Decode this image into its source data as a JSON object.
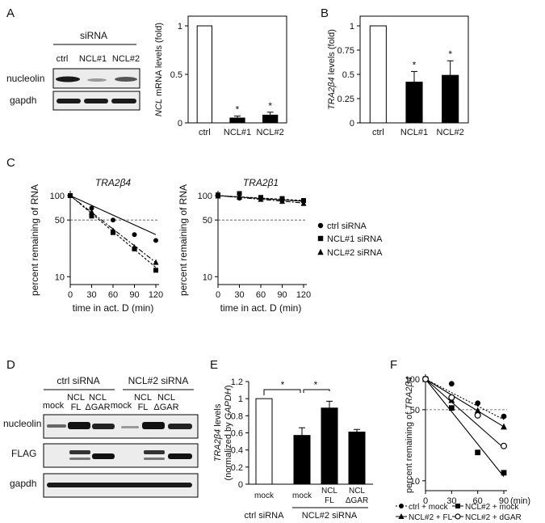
{
  "panels": {
    "A": "A",
    "B": "B",
    "C": "C",
    "D": "D",
    "E": "E",
    "F": "F"
  },
  "panelA": {
    "blot": {
      "header": "siRNA",
      "lanes": [
        "ctrl",
        "NCL#1",
        "NCL#2"
      ],
      "rows": [
        "nucleolin",
        "gapdh"
      ]
    }
  },
  "chart_data": [
    {
      "id": "A-chart",
      "type": "bar",
      "ylabel_italic": "NCL",
      "ylabel": " mRNA levels (fold)",
      "categories": [
        "ctrl",
        "NCL#1",
        "NCL#2"
      ],
      "values": [
        1.0,
        0.05,
        0.08
      ],
      "errors": [
        0,
        0.02,
        0.03
      ],
      "significance": [
        "",
        "*",
        "*"
      ],
      "fills": [
        "#ffffff",
        "#000000",
        "#000000"
      ],
      "ylim": [
        0,
        1.1
      ],
      "yticks": [
        "0",
        "0.5",
        "1"
      ]
    },
    {
      "id": "B-chart",
      "type": "bar",
      "ylabel_italic": "TRA2β4",
      "ylabel": " levels (fold)",
      "categories": [
        "ctrl",
        "NCL#1",
        "NCL#2"
      ],
      "values": [
        1.0,
        0.42,
        0.49
      ],
      "errors": [
        0,
        0.11,
        0.15
      ],
      "significance": [
        "",
        "*",
        "*"
      ],
      "fills": [
        "#ffffff",
        "#000000",
        "#000000"
      ],
      "ylim": [
        0,
        1.1
      ],
      "yticks": [
        "0",
        "0.25",
        "0.5",
        "0.75",
        "1"
      ]
    },
    {
      "id": "C-left",
      "type": "scatter",
      "title": "TRA2β4",
      "xlabel": "time in act. D (min)",
      "ylabel": "percent remaining of RNA",
      "xlim": [
        0,
        120
      ],
      "yscale": "log",
      "ylim": [
        8,
        100
      ],
      "xticks": [
        "0",
        "30",
        "60",
        "90",
        "120"
      ],
      "yticks": [
        "10",
        "50",
        "100"
      ],
      "reference_line": 50,
      "series": [
        {
          "name": "ctrl siRNA",
          "marker": "circle",
          "x": [
            0,
            30,
            60,
            90,
            120
          ],
          "y": [
            100,
            70,
            50,
            33,
            28
          ],
          "fit": [
            100,
            33
          ]
        },
        {
          "name": "NCL#1 siRNA",
          "marker": "square",
          "x": [
            0,
            30,
            60,
            90,
            120
          ],
          "y": [
            100,
            56,
            35,
            22,
            12
          ],
          "fit": [
            100,
            13
          ]
        },
        {
          "name": "NCL#2 siRNA",
          "marker": "triangle",
          "x": [
            0,
            30,
            60,
            90,
            120
          ],
          "y": [
            100,
            63,
            37,
            23,
            15
          ],
          "fit": [
            100,
            15
          ]
        }
      ]
    },
    {
      "id": "C-right",
      "type": "scatter",
      "title": "TRA2β1",
      "xlabel": "time in act. D (min)",
      "ylabel": "percent remaining of RNA",
      "xlim": [
        0,
        120
      ],
      "yscale": "log",
      "ylim": [
        8,
        100
      ],
      "xticks": [
        "0",
        "30",
        "60",
        "90",
        "120"
      ],
      "yticks": [
        "10",
        "50",
        "100"
      ],
      "reference_line": 50,
      "series": [
        {
          "name": "ctrl siRNA",
          "marker": "circle",
          "x": [
            0,
            30,
            60,
            90,
            120
          ],
          "y": [
            100,
            93,
            94,
            87,
            86
          ],
          "fit": [
            100,
            85
          ]
        },
        {
          "name": "NCL#1 siRNA",
          "marker": "square",
          "x": [
            0,
            30,
            60,
            90,
            120
          ],
          "y": [
            102,
            106,
            95,
            92,
            87
          ],
          "fit": [
            100,
            87
          ]
        },
        {
          "name": "NCL#2 siRNA",
          "marker": "triangle",
          "x": [
            0,
            30,
            60,
            90,
            120
          ],
          "y": [
            99,
            96,
            90,
            85,
            80
          ],
          "fit": [
            100,
            81
          ]
        }
      ]
    },
    {
      "id": "E-chart",
      "type": "bar",
      "ylabel_line1": "levels",
      "ylabel_line1_italic": "TRA2β4",
      "ylabel_line2_pre": "(normalized by ",
      "ylabel_line2_italic": "GAPDH",
      "ylabel_line2_post": ")",
      "categories": [
        "mock",
        "mock",
        "NCL FL",
        "NCL ΔGAR"
      ],
      "cat_lines": [
        [
          "mock"
        ],
        [
          "mock"
        ],
        [
          "NCL",
          "FL"
        ],
        [
          "NCL",
          "ΔGAR"
        ]
      ],
      "values": [
        1.0,
        0.57,
        0.89,
        0.61
      ],
      "errors": [
        0,
        0.09,
        0.08,
        0.03
      ],
      "fills": [
        "#ffffff",
        "#000000",
        "#000000",
        "#000000"
      ],
      "ylim": [
        0,
        1.2
      ],
      "yticks": [
        "0",
        "0.2",
        "0.4",
        "0.6",
        "0.8",
        "1",
        "1.2"
      ],
      "significance": [
        "*",
        "*"
      ],
      "groups": [
        "ctrl siRNA",
        "NCL#2 siRNA"
      ]
    },
    {
      "id": "F-chart",
      "type": "scatter",
      "ylabel_pre": "percent remaining of ",
      "ylabel_italic": "TRA2β4",
      "xunit": "(min)",
      "xlim": [
        0,
        90
      ],
      "yscale": "log",
      "ylim": [
        8,
        100
      ],
      "xticks": [
        "0",
        "30",
        "60",
        "90"
      ],
      "yticks": [
        "10",
        "50",
        "100"
      ],
      "reference_line": 50,
      "series": [
        {
          "name": "ctrl + mock",
          "marker": "circle",
          "x": [
            0,
            30,
            60,
            90
          ],
          "y": [
            100,
            90,
            58,
            43
          ],
          "fit": [
            100,
            40
          ],
          "dash": "2,2"
        },
        {
          "name": "NCL#2 + mock",
          "marker": "square",
          "x": [
            0,
            30,
            60,
            90
          ],
          "y": [
            100,
            52,
            19,
            12
          ],
          "fit": [
            100,
            11
          ],
          "dash": ""
        },
        {
          "name": "NCL#2 + FL",
          "marker": "triangle",
          "x": [
            0,
            30,
            60,
            90
          ],
          "y": [
            100,
            62,
            49,
            34
          ],
          "fit": [
            100,
            34
          ],
          "dash": ""
        },
        {
          "name": "NCL#2 + dGAR",
          "marker": "open-circle",
          "x": [
            0,
            30,
            60,
            90
          ],
          "y": [
            100,
            66,
            44,
            22
          ],
          "fit": [
            100,
            21
          ],
          "dash": ""
        }
      ]
    }
  ],
  "panelD": {
    "groups": [
      "ctrl siRNA",
      "NCL#2 siRNA"
    ],
    "lanes": [
      [
        "mock"
      ],
      [
        "NCL",
        "FL"
      ],
      [
        "NCL",
        "ΔGAR"
      ],
      [
        "mock"
      ],
      [
        "NCL",
        "FL"
      ],
      [
        "NCL",
        "ΔGAR"
      ]
    ],
    "rows": [
      "nucleolin",
      "FLAG",
      "gapdh"
    ]
  },
  "panelF": {
    "legend": [
      "ctrl + mock",
      "NCL#2 + mock",
      "NCL#2 + FL",
      "NCL#2 + dGAR"
    ]
  },
  "colors": {
    "ink": "#000000",
    "blot_bg": "#e9e9e9",
    "band": "#1a1a1a"
  }
}
